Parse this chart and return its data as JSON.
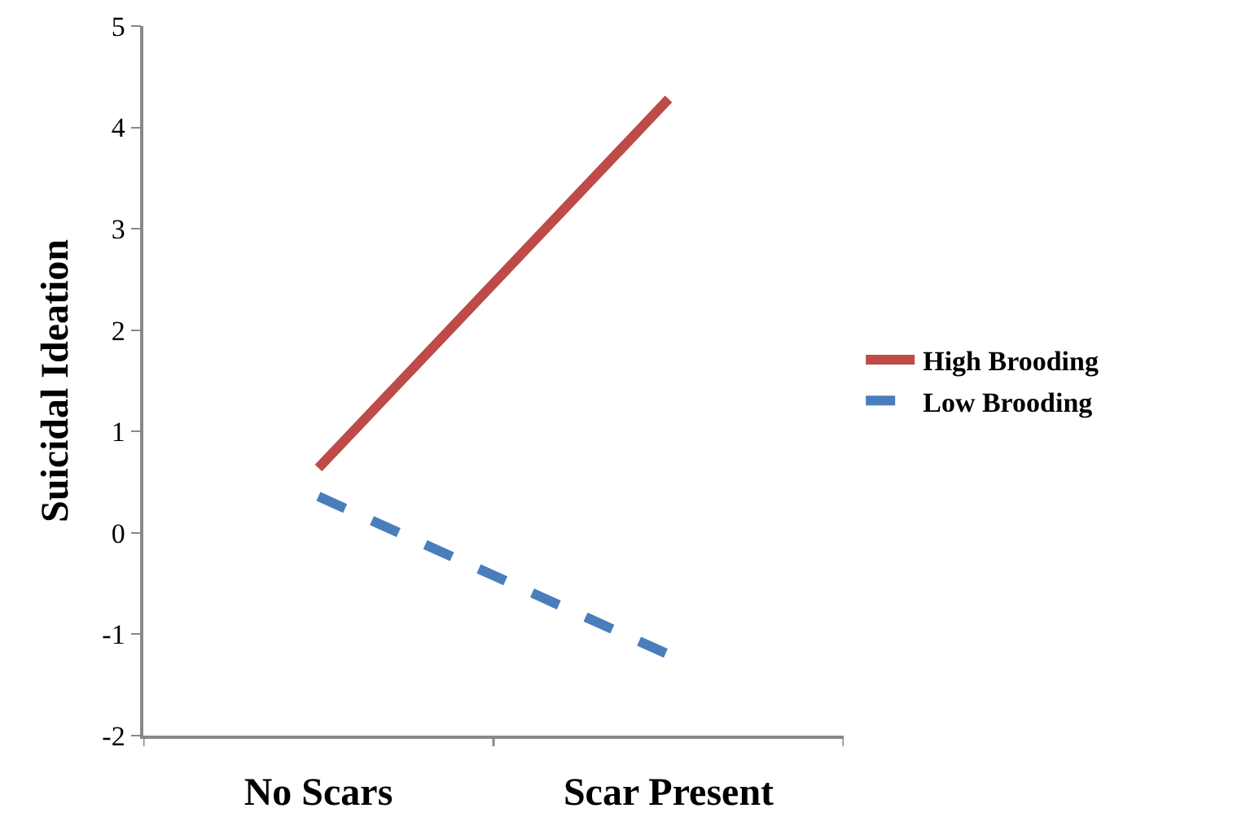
{
  "chart_data": {
    "type": "line",
    "ylabel": "Suicidal Ideation",
    "categories": [
      "No Scars",
      "Scar Present"
    ],
    "series": [
      {
        "name": "Low Brooding",
        "color": "#4a7ebb",
        "values": [
          0.36,
          -1.2
        ],
        "line_style": "dashed"
      },
      {
        "name": "High Brooding",
        "color": "#be4b48",
        "values": [
          0.64,
          4.28
        ],
        "line_style": "solid"
      }
    ],
    "ylim": [
      -2,
      5
    ],
    "yticks": [
      -2,
      -1,
      0,
      1,
      2,
      3,
      4,
      5
    ],
    "grid": false,
    "legend": "right",
    "marker": "none"
  }
}
